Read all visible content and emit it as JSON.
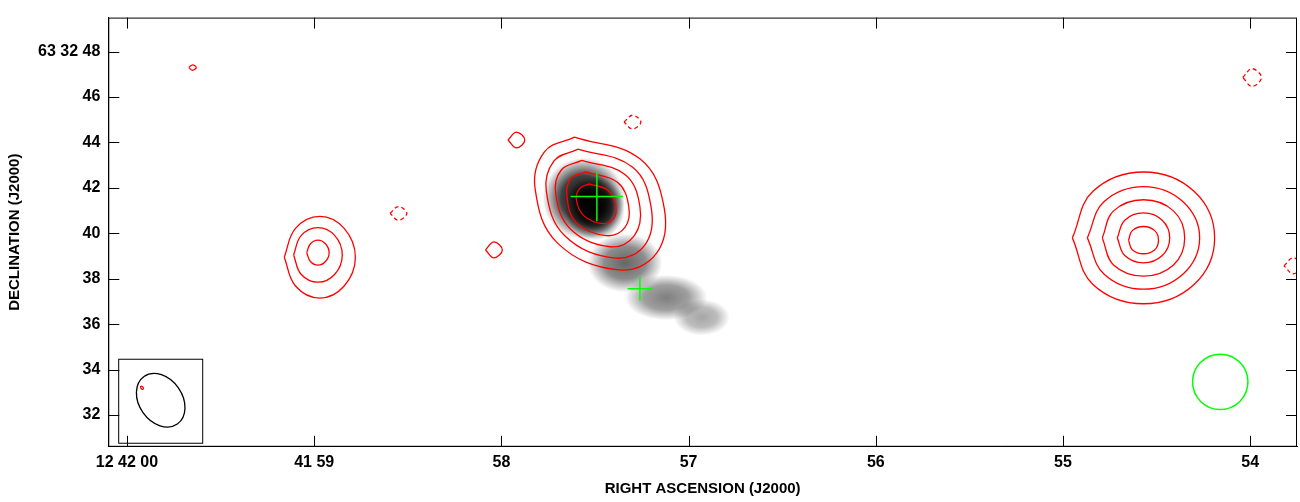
{
  "chart_data": {
    "type": "contour",
    "x_label": "RIGHT ASCENSION (J2000)",
    "y_label": "DECLINATION (J2000)",
    "xlim": [
      60.1,
      53.75
    ],
    "ylim": [
      30.6,
      49.5
    ],
    "xticks": [
      {
        "value": 60,
        "label": "12 42 00"
      },
      {
        "value": 59,
        "label": "41 59"
      },
      58,
      57,
      56,
      55,
      54
    ],
    "yticks": [
      {
        "value": 48,
        "label": "63 32 48"
      },
      46,
      44,
      42,
      40,
      38,
      36,
      34,
      32
    ],
    "grid": false,
    "image": {
      "color": "#000000",
      "components": [
        {
          "x": 57.56,
          "y": 41.54,
          "sx": 0.22,
          "sy": 1.8,
          "peak": 1.0
        },
        {
          "x": 57.5,
          "y": 41.1,
          "sx": 0.16,
          "sy": 1.4,
          "peak": 1.0
        },
        {
          "x": 57.34,
          "y": 38.7,
          "sx": 0.2,
          "sy": 1.3,
          "peak": 0.6
        },
        {
          "x": 57.12,
          "y": 37.17,
          "sx": 0.22,
          "sy": 1.0,
          "peak": 0.5
        },
        {
          "x": 56.93,
          "y": 36.3,
          "sx": 0.15,
          "sy": 0.8,
          "peak": 0.35
        }
      ]
    },
    "series": [
      {
        "color": "#ff0000",
        "line_style": "solid",
        "x": [
          57.61,
          57.26,
          57.13,
          57.17,
          57.37,
          57.7,
          57.82,
          57.77,
          57.61
        ],
        "y": [
          44.24,
          43.28,
          41.1,
          39.14,
          38.39,
          39.57,
          41.97,
          43.59,
          44.24
        ]
      },
      {
        "color": "#ff0000",
        "line_style": "solid",
        "x": [
          57.59,
          57.3,
          57.2,
          57.23,
          57.39,
          57.66,
          57.76,
          57.72,
          57.59
        ],
        "y": [
          43.71,
          42.92,
          41.14,
          39.53,
          38.91,
          39.88,
          41.85,
          43.18,
          43.71
        ]
      },
      {
        "color": "#ff0000",
        "line_style": "solid",
        "x": [
          57.57,
          57.34,
          57.26,
          57.29,
          57.42,
          57.63,
          57.71,
          57.68,
          57.57
        ],
        "y": [
          43.21,
          42.59,
          41.17,
          39.9,
          39.41,
          40.18,
          41.74,
          42.79,
          43.21
        ]
      },
      {
        "color": "#ff0000",
        "line_style": "solid",
        "x": [
          57.55,
          57.38,
          57.32,
          57.34,
          57.44,
          57.6,
          57.65,
          57.63,
          57.55
        ],
        "y": [
          42.71,
          42.25,
          41.2,
          40.26,
          39.9,
          40.47,
          41.62,
          42.4,
          42.71
        ]
      },
      {
        "color": "#ff0000",
        "line_style": "solid",
        "x": [
          57.53,
          57.43,
          57.39,
          57.4,
          57.46,
          57.56,
          57.6,
          57.58,
          57.53
        ],
        "y": [
          42.18,
          41.89,
          41.24,
          40.65,
          40.43,
          40.78,
          41.5,
          41.99,
          42.18
        ]
      },
      {
        "color": "#ff0000",
        "line_style": "solid",
        "x": [
          54.95,
          54.84,
          54.57,
          54.3,
          54.19,
          54.3,
          54.57,
          54.84,
          54.95
        ],
        "y": [
          39.8,
          41.85,
          42.7,
          41.85,
          39.8,
          37.75,
          36.9,
          37.75,
          39.8
        ]
      },
      {
        "color": "#ff0000",
        "line_style": "solid",
        "x": [
          54.87,
          54.78,
          54.57,
          54.36,
          54.27,
          54.36,
          54.57,
          54.78,
          54.87
        ],
        "y": [
          39.8,
          41.4,
          42.06,
          41.4,
          39.8,
          38.2,
          37.54,
          38.2,
          39.8
        ]
      },
      {
        "color": "#ff0000",
        "line_style": "solid",
        "x": [
          54.79,
          54.73,
          54.57,
          54.41,
          54.35,
          54.41,
          54.57,
          54.73,
          54.79
        ],
        "y": [
          39.8,
          40.99,
          41.48,
          40.99,
          39.8,
          38.61,
          38.12,
          38.61,
          39.8
        ]
      },
      {
        "color": "#ff0000",
        "line_style": "solid",
        "x": [
          54.71,
          54.67,
          54.57,
          54.47,
          54.43,
          54.47,
          54.57,
          54.67,
          54.71
        ],
        "y": [
          39.8,
          40.58,
          40.9,
          40.58,
          39.8,
          39.02,
          38.7,
          39.02,
          39.8
        ]
      },
      {
        "color": "#ff0000",
        "line_style": "solid",
        "x": [
          54.65,
          54.63,
          54.57,
          54.51,
          54.49,
          54.51,
          54.57,
          54.63,
          54.65
        ],
        "y": [
          39.7,
          40.12,
          40.3,
          40.12,
          39.7,
          39.28,
          39.1,
          39.28,
          39.7
        ]
      },
      {
        "color": "#ff0000",
        "line_style": "solid",
        "x": [
          59.16,
          59.1,
          58.97,
          58.84,
          58.78,
          58.84,
          58.97,
          59.1,
          59.16
        ],
        "y": [
          38.95,
          40.22,
          40.75,
          40.22,
          38.95,
          37.68,
          37.15,
          37.68,
          38.95
        ]
      },
      {
        "color": "#ff0000",
        "line_style": "solid",
        "x": [
          59.11,
          59.07,
          58.98,
          58.89,
          58.85,
          58.89,
          58.98,
          59.07,
          59.11
        ],
        "y": [
          39.05,
          39.9,
          40.25,
          39.9,
          39.05,
          38.2,
          37.85,
          38.2,
          39.05
        ]
      },
      {
        "color": "#ff0000",
        "line_style": "solid",
        "x": [
          59.04,
          59.02,
          58.98,
          58.94,
          58.92,
          58.94,
          58.98,
          59.02,
          59.04
        ],
        "y": [
          39.15,
          39.54,
          39.7,
          39.54,
          39.15,
          38.76,
          38.6,
          38.76,
          39.15
        ]
      },
      {
        "color": "#ff0000",
        "line_style": "solid",
        "x": [
          57.965,
          57.92,
          57.875,
          57.92,
          57.965
        ],
        "y": [
          44.11,
          44.46,
          44.11,
          43.76,
          44.11
        ]
      },
      {
        "color": "#ff0000",
        "line_style": "solid",
        "x": [
          58.085,
          58.04,
          57.995,
          58.04,
          58.085
        ],
        "y": [
          39.27,
          39.62,
          39.27,
          38.92,
          39.27
        ]
      },
      {
        "color": "#ff0000",
        "line_style": "dashed",
        "x": [
          58.595,
          58.55,
          58.505,
          58.55,
          58.595
        ],
        "y": [
          40.88,
          41.18,
          40.88,
          40.58,
          40.88
        ]
      },
      {
        "color": "#ff0000",
        "line_style": "dashed",
        "x": [
          57.345,
          57.3,
          57.255,
          57.3,
          57.345
        ],
        "y": [
          44.9,
          45.2,
          44.9,
          44.6,
          44.9
        ]
      },
      {
        "color": "#ff0000",
        "line_style": "dashed",
        "x": [
          54.04,
          53.99,
          53.94,
          53.99,
          54.04
        ],
        "y": [
          46.86,
          47.25,
          46.86,
          46.47,
          46.86
        ]
      },
      {
        "color": "#ff0000",
        "line_style": "solid",
        "x": [
          59.67,
          59.65,
          59.63,
          59.65,
          59.67
        ],
        "y": [
          47.3,
          47.42,
          47.3,
          47.18,
          47.3
        ]
      },
      {
        "color": "#ff0000",
        "line_style": "dashed",
        "x": [
          53.82,
          53.77,
          53.72,
          53.77,
          53.82
        ],
        "y": [
          38.57,
          38.92,
          38.57,
          38.22,
          38.57
        ]
      }
    ],
    "markers": [
      {
        "marker": "cross",
        "x": 57.49,
        "y": 41.62,
        "x_err": 0.14,
        "y_err": 1.09,
        "color": "#00ff00"
      },
      {
        "marker": "cross",
        "x": 57.26,
        "y": 37.56,
        "x_err": 0.066,
        "y_err": 0.52,
        "color": "#00ff00"
      },
      {
        "marker": "circle",
        "x": 54.16,
        "y": 33.46,
        "radius": 1.22,
        "color": "#00ff00"
      }
    ],
    "beams": [
      {
        "x": 59.82,
        "y": 32.65,
        "major": 1.28,
        "minor": 0.95,
        "pa": -35,
        "color": "#000000"
      },
      {
        "x": 59.92,
        "y": 33.2,
        "major": 0.08,
        "minor": 0.05,
        "pa": -35,
        "color": "#ff0000"
      }
    ]
  }
}
